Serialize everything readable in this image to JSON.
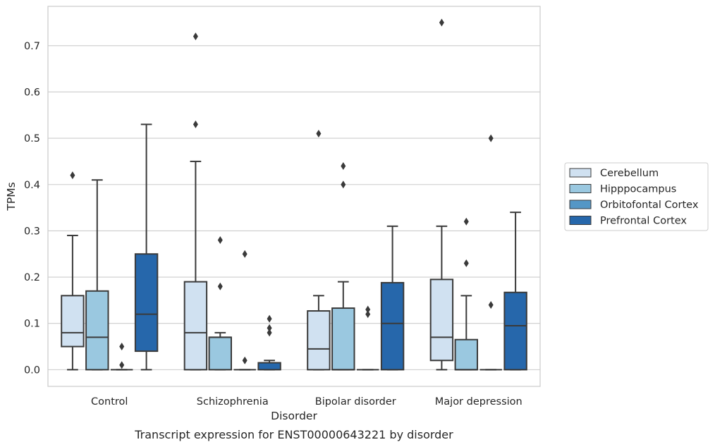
{
  "chart_data": {
    "type": "box",
    "title": "",
    "caption": "Transcript expression for ENST00000643221 by disorder",
    "xlabel": "Disorder",
    "ylabel": "TPMs",
    "ylim": [
      -0.036,
      0.785
    ],
    "yticks": [
      "0.0",
      "0.1",
      "0.2",
      "0.3",
      "0.4",
      "0.5",
      "0.6",
      "0.7"
    ],
    "grid": true,
    "legend_position": "right",
    "categories": [
      "Control",
      "Schizophrenia",
      "Bipolar disorder",
      "Major depression"
    ],
    "series": [
      {
        "name": "Cerebellum",
        "color": "#d0e1f1",
        "boxes": [
          {
            "whislo": 0.0,
            "q1": 0.05,
            "med": 0.08,
            "q3": 0.16,
            "whishi": 0.29,
            "fliers": [
              0.42
            ]
          },
          {
            "whislo": 0.0,
            "q1": 0.0,
            "med": 0.08,
            "q3": 0.19,
            "whishi": 0.45,
            "fliers": [
              0.53,
              0.72
            ]
          },
          {
            "whislo": 0.0,
            "q1": 0.0,
            "med": 0.045,
            "q3": 0.127,
            "whishi": 0.16,
            "fliers": [
              0.51
            ]
          },
          {
            "whislo": 0.0,
            "q1": 0.02,
            "med": 0.07,
            "q3": 0.195,
            "whishi": 0.31,
            "fliers": [
              0.75
            ]
          }
        ]
      },
      {
        "name": "Hipppocampus",
        "color": "#9ac8e0",
        "boxes": [
          {
            "whislo": 0.0,
            "q1": 0.0,
            "med": 0.07,
            "q3": 0.17,
            "whishi": 0.41,
            "fliers": []
          },
          {
            "whislo": 0.0,
            "q1": 0.0,
            "med": 0.07,
            "q3": 0.07,
            "whishi": 0.08,
            "fliers": [
              0.18,
              0.28
            ]
          },
          {
            "whislo": 0.0,
            "q1": 0.0,
            "med": 0.0,
            "q3": 0.133,
            "whishi": 0.19,
            "fliers": [
              0.4,
              0.44
            ]
          },
          {
            "whislo": 0.0,
            "q1": 0.0,
            "med": 0.0,
            "q3": 0.065,
            "whishi": 0.16,
            "fliers": [
              0.23,
              0.32
            ]
          }
        ]
      },
      {
        "name": "Orbitofontal Cortex",
        "color": "#5497c6",
        "boxes": [
          {
            "whislo": 0.0,
            "q1": 0.0,
            "med": 0.0,
            "q3": 0.0,
            "whishi": 0.0,
            "fliers": [
              0.01,
              0.05
            ]
          },
          {
            "whislo": 0.0,
            "q1": 0.0,
            "med": 0.0,
            "q3": 0.0,
            "whishi": 0.0,
            "fliers": [
              0.02,
              0.25
            ]
          },
          {
            "whislo": 0.0,
            "q1": 0.0,
            "med": 0.0,
            "q3": 0.0,
            "whishi": 0.0,
            "fliers": [
              0.12,
              0.13
            ]
          },
          {
            "whislo": 0.0,
            "q1": 0.0,
            "med": 0.0,
            "q3": 0.0,
            "whishi": 0.0,
            "fliers": [
              0.14,
              0.5
            ]
          }
        ]
      },
      {
        "name": "Prefrontal Cortex",
        "color": "#2667ab",
        "boxes": [
          {
            "whislo": 0.0,
            "q1": 0.04,
            "med": 0.12,
            "q3": 0.25,
            "whishi": 0.53,
            "fliers": []
          },
          {
            "whislo": 0.0,
            "q1": 0.0,
            "med": 0.015,
            "q3": 0.015,
            "whishi": 0.02,
            "fliers": [
              0.08,
              0.09,
              0.11
            ]
          },
          {
            "whislo": 0.0,
            "q1": 0.0,
            "med": 0.1,
            "q3": 0.188,
            "whishi": 0.31,
            "fliers": []
          },
          {
            "whislo": 0.0,
            "q1": 0.0,
            "med": 0.095,
            "q3": 0.167,
            "whishi": 0.34,
            "fliers": []
          }
        ]
      }
    ]
  }
}
